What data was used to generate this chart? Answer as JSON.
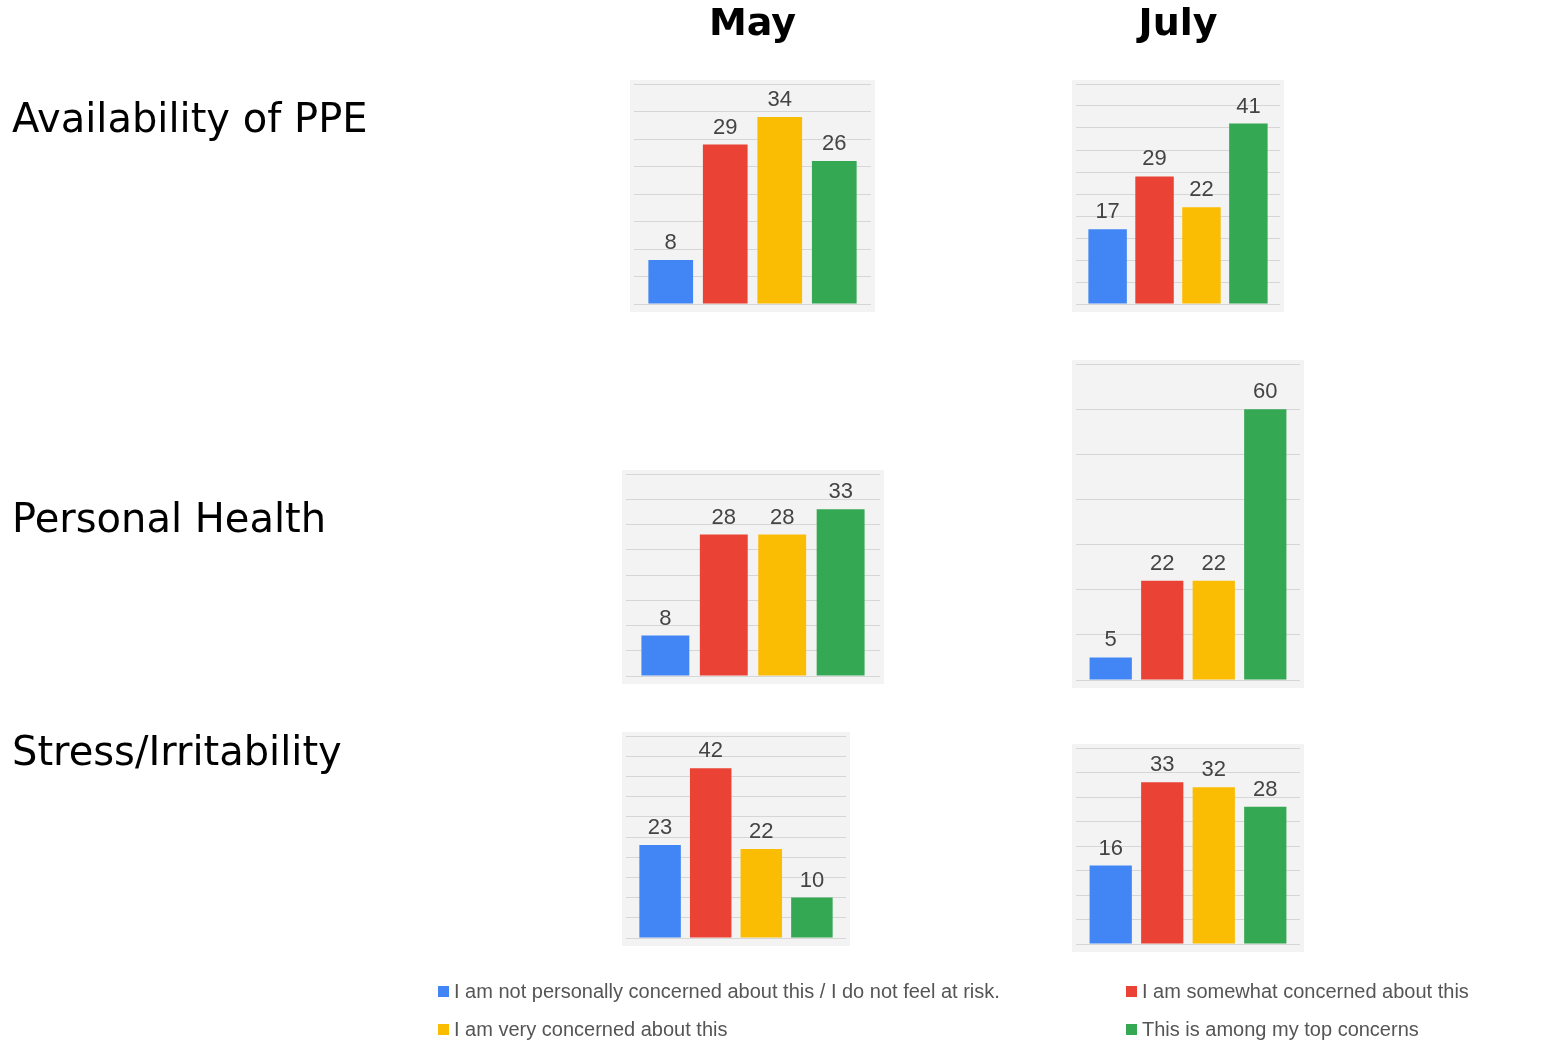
{
  "chart_data": [
    {
      "type": "bar",
      "title": "May",
      "ylabel": "Availability of PPE",
      "categories": [
        null
      ],
      "series": [
        {
          "name": "I am not personally concerned about this / I do not feel at risk.",
          "color": "#4285f4",
          "values": [
            8
          ]
        },
        {
          "name": "I am somewhat concerned about this",
          "color": "#ea4335",
          "values": [
            29
          ]
        },
        {
          "name": "I am very concerned about this",
          "color": "#fbbc04",
          "values": [
            34
          ]
        },
        {
          "name": "This is among my top concerns",
          "color": "#34a853",
          "values": [
            26
          ]
        }
      ],
      "data_labels": true,
      "grid": "y",
      "tick_labels": false,
      "legend": "bottom"
    },
    {
      "type": "bar",
      "title": "July",
      "categories": [
        null
      ],
      "series": [
        {
          "color": "#4285f4",
          "values": [
            17
          ]
        },
        {
          "color": "#ea4335",
          "values": [
            29
          ]
        },
        {
          "color": "#fbbc04",
          "values": [
            22
          ]
        },
        {
          "color": "#34a853",
          "values": [
            41
          ]
        }
      ],
      "data_labels": true,
      "grid": "y",
      "tick_labels": false
    },
    {
      "type": "bar",
      "ylabel": "Personal Health",
      "categories": [
        null
      ],
      "series": [
        {
          "color": "#4285f4",
          "values": [
            8
          ]
        },
        {
          "color": "#ea4335",
          "values": [
            28
          ]
        },
        {
          "color": "#fbbc04",
          "values": [
            28
          ]
        },
        {
          "color": "#34a853",
          "values": [
            33
          ]
        }
      ],
      "data_labels": true,
      "grid": "y",
      "tick_labels": false
    },
    {
      "type": "bar",
      "categories": [
        null
      ],
      "series": [
        {
          "color": "#4285f4",
          "values": [
            5
          ]
        },
        {
          "color": "#ea4335",
          "values": [
            22
          ]
        },
        {
          "color": "#fbbc04",
          "values": [
            22
          ]
        },
        {
          "color": "#34a853",
          "values": [
            60
          ]
        }
      ],
      "data_labels": true,
      "grid": "y",
      "tick_labels": false
    },
    {
      "type": "bar",
      "ylabel": "Stress/Irritability",
      "categories": [
        null
      ],
      "series": [
        {
          "color": "#4285f4",
          "values": [
            23
          ]
        },
        {
          "color": "#ea4335",
          "values": [
            42
          ]
        },
        {
          "color": "#fbbc04",
          "values": [
            22
          ]
        },
        {
          "color": "#34a853",
          "values": [
            10
          ]
        }
      ],
      "data_labels": true,
      "grid": "y",
      "tick_labels": false
    },
    {
      "type": "bar",
      "categories": [
        null
      ],
      "series": [
        {
          "color": "#4285f4",
          "values": [
            16
          ]
        },
        {
          "color": "#ea4335",
          "values": [
            33
          ]
        },
        {
          "color": "#fbbc04",
          "values": [
            32
          ]
        },
        {
          "color": "#34a853",
          "values": [
            28
          ]
        }
      ],
      "data_labels": true,
      "grid": "y",
      "tick_labels": false
    }
  ]
}
